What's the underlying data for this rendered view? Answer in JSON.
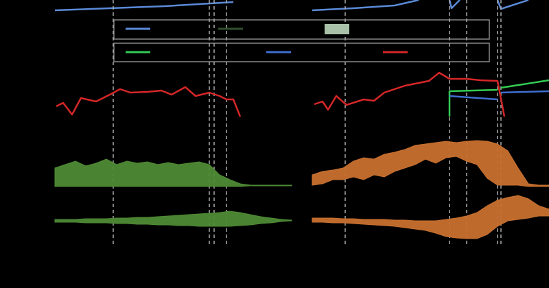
{
  "chart_data": [
    {
      "type": "line",
      "xlim": [
        0,
        345
      ],
      "ylim": [
        0,
        25
      ],
      "series": [
        {
          "color": "#5b8bd9",
          "x": [
            0,
            80,
            160,
            260
          ],
          "values": [
            10,
            13,
            16,
            22
          ]
        }
      ]
    },
    {
      "type": "line",
      "xlim": [
        0,
        345
      ],
      "ylim": [
        0,
        25
      ],
      "series": [
        {
          "color": "#5b8bd9",
          "x": [
            0,
            60,
            120,
            155,
            null,
            200,
            203,
            215,
            null,
            270,
            275,
            315
          ],
          "values": [
            10,
            13,
            17,
            25,
            null,
            25,
            13,
            25,
            null,
            25,
            12,
            25
          ]
        }
      ]
    },
    {
      "type": "line",
      "xlim": [
        0,
        345
      ],
      "ylim": [
        0,
        85
      ],
      "markers": [
        85,
        225,
        232,
        250
      ],
      "series": [
        {
          "color": "#d62728",
          "x": [
            2,
            12,
            25,
            38,
            60,
            80,
            95,
            110,
            135,
            155,
            170,
            190,
            205,
            225,
            240,
            250,
            260,
            270
          ],
          "values": [
            25,
            30,
            13,
            37,
            32,
            42,
            50,
            45,
            46,
            48,
            42,
            53,
            40,
            45,
            40,
            35,
            35,
            10
          ]
        }
      ]
    },
    {
      "type": "line",
      "xlim": [
        0,
        345
      ],
      "ylim": [
        0,
        85
      ],
      "markers": [
        48,
        200,
        225,
        270,
        275
      ],
      "series": [
        {
          "color": "#d62728",
          "x": [
            3,
            15,
            23,
            35,
            50,
            75,
            90,
            105,
            135,
            170,
            185,
            200,
            225,
            245,
            270,
            280
          ],
          "values": [
            28,
            32,
            20,
            40,
            27,
            35,
            33,
            45,
            55,
            62,
            74,
            65,
            65,
            63,
            62,
            10
          ]
        },
        {
          "color": "#33cc55",
          "x": [
            200,
            200,
            270,
            null,
            275,
            345
          ],
          "values": [
            10,
            47,
            49,
            null,
            52,
            63
          ]
        },
        {
          "color": "#3f6fd1",
          "x": [
            200,
            270,
            null,
            275,
            345
          ],
          "values": [
            40,
            35,
            null,
            45,
            47
          ]
        }
      ]
    },
    {
      "type": "band",
      "xlim": [
        0,
        345
      ],
      "ylim": [
        0,
        75
      ],
      "color": "#4e8a35",
      "x": [
        0,
        15,
        30,
        45,
        60,
        75,
        90,
        105,
        120,
        135,
        150,
        165,
        180,
        195,
        210,
        225,
        240,
        255,
        270,
        285,
        300,
        315,
        330,
        345
      ],
      "upper": [
        30,
        35,
        40,
        33,
        37,
        43,
        35,
        40,
        37,
        39,
        35,
        38,
        35,
        37,
        39,
        35,
        20,
        13,
        7,
        5,
        5,
        5,
        5,
        5
      ],
      "lower": [
        3,
        3,
        3,
        3,
        3,
        3,
        3,
        3,
        3,
        3,
        3,
        3,
        3,
        3,
        3,
        3,
        3,
        3,
        3,
        4,
        4,
        4,
        4,
        4
      ]
    },
    {
      "type": "band",
      "xlim": [
        0,
        345
      ],
      "ylim": [
        0,
        75
      ],
      "color": "#c8702f",
      "x": [
        0,
        15,
        30,
        45,
        60,
        75,
        90,
        105,
        120,
        135,
        150,
        165,
        180,
        195,
        210,
        225,
        240,
        255,
        270,
        285,
        300,
        315,
        330,
        345
      ],
      "upper": [
        20,
        25,
        27,
        30,
        40,
        45,
        43,
        50,
        53,
        57,
        63,
        65,
        67,
        69,
        67,
        69,
        70,
        69,
        65,
        55,
        30,
        7,
        5,
        5
      ],
      "lower": [
        5,
        7,
        13,
        13,
        17,
        13,
        20,
        17,
        25,
        30,
        35,
        43,
        37,
        45,
        47,
        40,
        35,
        15,
        5,
        5,
        5,
        3,
        3,
        3
      ]
    },
    {
      "type": "band",
      "xlim": [
        0,
        345
      ],
      "ylim": [
        0,
        65
      ],
      "color": "#4e8a35",
      "x": [
        0,
        15,
        30,
        45,
        60,
        75,
        90,
        105,
        120,
        135,
        150,
        165,
        180,
        195,
        210,
        225,
        240,
        255,
        270,
        285,
        300,
        315,
        330,
        345
      ],
      "upper": [
        30,
        30,
        30,
        31,
        31,
        31,
        32,
        32,
        33,
        33,
        34,
        35,
        36,
        37,
        38,
        39,
        40,
        42,
        40,
        37,
        34,
        32,
        30,
        29
      ],
      "lower": [
        26,
        26,
        26,
        25,
        25,
        25,
        24,
        24,
        23,
        23,
        22,
        22,
        21,
        21,
        20,
        20,
        20,
        20,
        21,
        22,
        24,
        25,
        27,
        28
      ]
    },
    {
      "type": "band",
      "xlim": [
        0,
        345
      ],
      "ylim": [
        0,
        65
      ],
      "color": "#c8702f",
      "x": [
        0,
        15,
        30,
        45,
        60,
        75,
        90,
        105,
        120,
        135,
        150,
        165,
        180,
        195,
        210,
        225,
        240,
        255,
        270,
        285,
        300,
        315,
        330,
        345
      ],
      "upper": [
        32,
        32,
        32,
        31,
        31,
        30,
        30,
        30,
        29,
        29,
        28,
        28,
        28,
        30,
        32,
        35,
        40,
        50,
        58,
        62,
        65,
        60,
        50,
        45
      ],
      "lower": [
        26,
        26,
        25,
        25,
        24,
        23,
        22,
        21,
        20,
        18,
        16,
        14,
        10,
        5,
        3,
        2,
        2,
        8,
        20,
        28,
        30,
        32,
        35,
        35
      ]
    }
  ],
  "legends": [
    {
      "colors": [
        "#5b8bd9",
        "#2f4f2f",
        "#a9c1a9"
      ]
    },
    {
      "colors": [
        "#33cc55",
        "#3f6fd1",
        "#d62728"
      ]
    }
  ]
}
